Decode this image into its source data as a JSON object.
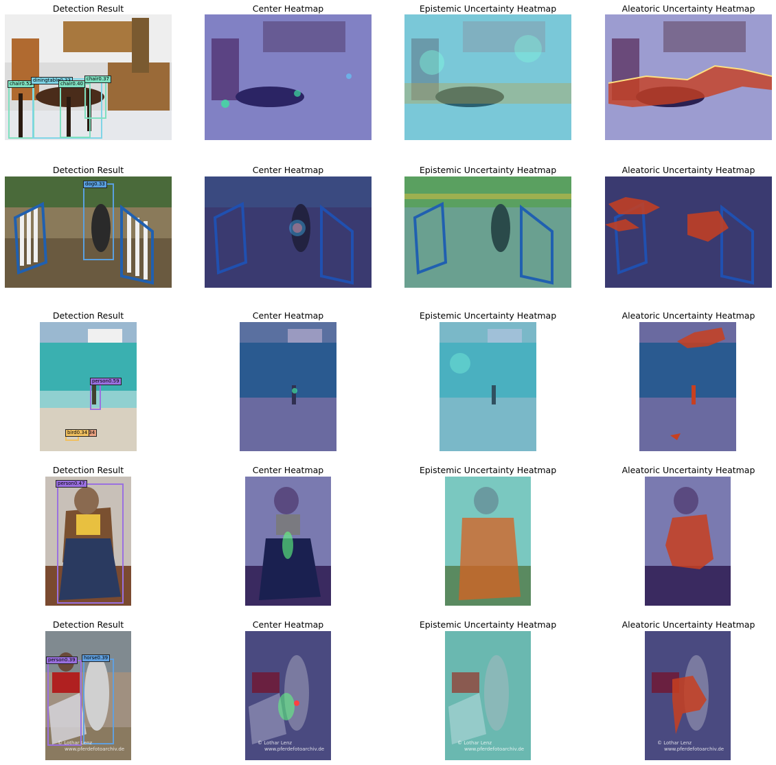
{
  "titles": {
    "detection": "Detection Result",
    "center": "Center Heatmap",
    "epistemic": "Epistemic Uncertainty Heatmap",
    "aleatoric": "Aleatoric Uncertainty Heatmap"
  },
  "detections": {
    "row1": [
      "chair0.52",
      "diningtable0.33",
      "chair0.40",
      "chair0.37"
    ],
    "row2": [
      "dog0.33"
    ],
    "row3": [
      "person0.59",
      "bird0.34",
      "bird0.34"
    ],
    "row4": [
      "person0.47"
    ],
    "row5": [
      "person0.39",
      "horse0.39"
    ]
  },
  "watermark": {
    "line1": "© Lothar Lenz",
    "line2": "www.pferdefotoarchiv.de"
  },
  "colors": {
    "chair": "#7fe0c0",
    "diningtable": "#7fd4e6",
    "dog": "#5aa0e0",
    "person": "#9a70e0",
    "bird": "#f0c060",
    "bird_alt": "#e8a080",
    "horse": "#60a0e0",
    "heatmap_overlay": "#3030a0"
  }
}
